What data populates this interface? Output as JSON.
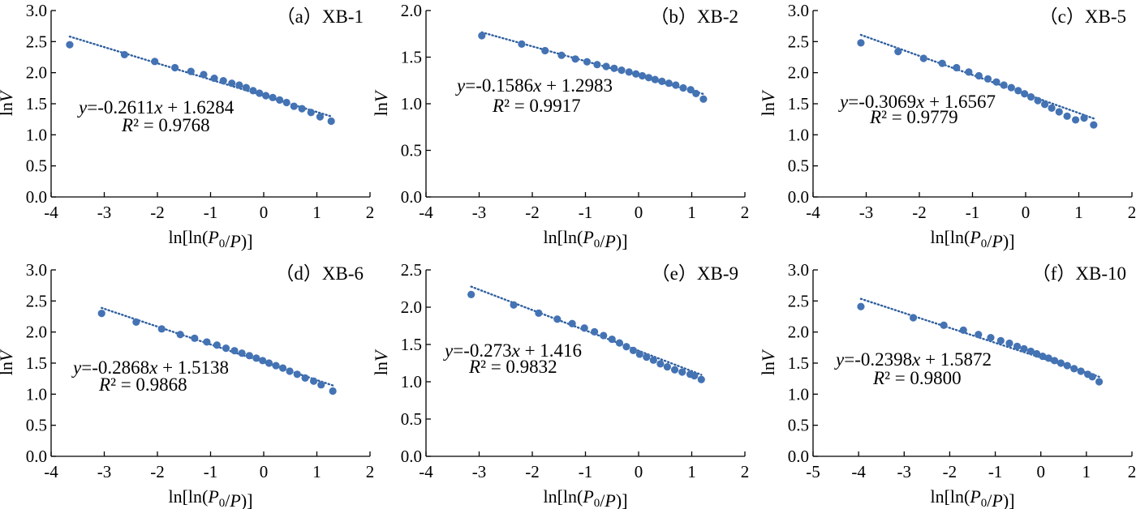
{
  "colors": {
    "marker": "#4473b4",
    "fit_line": "#2f5f9e",
    "axis": "#000000"
  },
  "chart_data": [
    {
      "type": "scatter",
      "title": "（a）XB-1",
      "xlabel": "ln[ln(P0/P)]",
      "ylabel": "lnV",
      "xlim": [
        -4,
        2
      ],
      "ylim": [
        0,
        3
      ],
      "xticks": [
        -4,
        -3,
        -2,
        -1,
        0,
        1,
        2
      ],
      "yticks": [
        0.0,
        0.5,
        1.0,
        1.5,
        2.0,
        2.5,
        3.0
      ],
      "x": [
        -3.65,
        -2.62,
        -2.05,
        -1.67,
        -1.37,
        -1.13,
        -0.93,
        -0.76,
        -0.6,
        -0.46,
        -0.33,
        -0.2,
        -0.08,
        0.04,
        0.17,
        0.3,
        0.43,
        0.57,
        0.72,
        0.89,
        1.06,
        1.27
      ],
      "y": [
        2.45,
        2.29,
        2.18,
        2.08,
        2.02,
        1.97,
        1.91,
        1.87,
        1.83,
        1.8,
        1.76,
        1.71,
        1.67,
        1.63,
        1.6,
        1.56,
        1.52,
        1.46,
        1.42,
        1.36,
        1.29,
        1.22
      ],
      "fit": {
        "slope": -0.2611,
        "intercept": 1.6284,
        "x_range": [
          -3.65,
          1.27
        ]
      },
      "equation": {
        "y_text": "y",
        "eq_text": "=-0.2611",
        "x_text": "x",
        "tail_text": " + 1.6284",
        "r2_sym": "R",
        "r2_text": "² = 0.9768"
      }
    },
    {
      "type": "scatter",
      "title": "（b）XB-2",
      "xlabel": "ln[ln(P0/P)]",
      "ylabel": "lnV",
      "xlim": [
        -4,
        2
      ],
      "ylim": [
        0,
        2
      ],
      "xticks": [
        -4,
        -3,
        -2,
        -1,
        0,
        1,
        2
      ],
      "yticks": [
        0.0,
        0.5,
        1.0,
        1.5,
        2.0
      ],
      "x": [
        -2.95,
        -2.2,
        -1.76,
        -1.45,
        -1.19,
        -0.97,
        -0.78,
        -0.61,
        -0.46,
        -0.32,
        -0.18,
        -0.05,
        0.07,
        0.19,
        0.31,
        0.44,
        0.57,
        0.7,
        0.84,
        0.98,
        1.08,
        1.22
      ],
      "y": [
        1.73,
        1.64,
        1.57,
        1.52,
        1.48,
        1.45,
        1.42,
        1.4,
        1.38,
        1.36,
        1.34,
        1.32,
        1.3,
        1.28,
        1.26,
        1.24,
        1.22,
        1.2,
        1.17,
        1.15,
        1.11,
        1.05
      ],
      "fit": {
        "slope": -0.1586,
        "intercept": 1.2983,
        "x_range": [
          -2.95,
          1.22
        ]
      },
      "equation": {
        "y_text": "y",
        "eq_text": "=-0.1586",
        "x_text": "x",
        "tail_text": " + 1.2983",
        "r2_sym": "R",
        "r2_text": "² = 0.9917"
      }
    },
    {
      "type": "scatter",
      "title": "（c）XB-5",
      "xlabel": "ln[ln(P0/P)]",
      "ylabel": "lnV",
      "xlim": [
        -4,
        2
      ],
      "ylim": [
        0,
        3
      ],
      "xticks": [
        -4,
        -3,
        -2,
        -1,
        0,
        1,
        2
      ],
      "yticks": [
        0.0,
        0.5,
        1.0,
        1.5,
        2.0,
        2.5,
        3.0
      ],
      "x": [
        -3.1,
        -2.4,
        -1.92,
        -1.57,
        -1.3,
        -1.07,
        -0.88,
        -0.71,
        -0.55,
        -0.41,
        -0.27,
        -0.14,
        -0.02,
        0.1,
        0.23,
        0.36,
        0.49,
        0.63,
        0.78,
        0.94,
        1.1,
        1.28
      ],
      "y": [
        2.48,
        2.34,
        2.23,
        2.15,
        2.08,
        2.01,
        1.95,
        1.9,
        1.85,
        1.8,
        1.76,
        1.71,
        1.66,
        1.61,
        1.55,
        1.49,
        1.43,
        1.37,
        1.3,
        1.24,
        1.27,
        1.16
      ],
      "fit": {
        "slope": -0.3069,
        "intercept": 1.6567,
        "x_range": [
          -3.1,
          1.28
        ]
      },
      "equation": {
        "y_text": "y",
        "eq_text": "=-0.3069",
        "x_text": "x",
        "tail_text": " + 1.6567",
        "r2_sym": "R",
        "r2_text": "² = 0.9779"
      }
    },
    {
      "type": "scatter",
      "title": "（d）XB-6",
      "xlabel": "ln[ln(P0/P)]",
      "ylabel": "lnV",
      "xlim": [
        -4,
        2
      ],
      "ylim": [
        0,
        3
      ],
      "xticks": [
        -4,
        -3,
        -2,
        -1,
        0,
        1,
        2
      ],
      "yticks": [
        0.0,
        0.5,
        1.0,
        1.5,
        2.0,
        2.5,
        3.0
      ],
      "x": [
        -3.05,
        -2.4,
        -1.92,
        -1.57,
        -1.3,
        -1.07,
        -0.88,
        -0.71,
        -0.55,
        -0.41,
        -0.27,
        -0.14,
        -0.02,
        0.1,
        0.23,
        0.36,
        0.49,
        0.63,
        0.78,
        0.94,
        1.08,
        1.3
      ],
      "y": [
        2.3,
        2.16,
        2.05,
        1.96,
        1.9,
        1.84,
        1.79,
        1.74,
        1.7,
        1.66,
        1.62,
        1.58,
        1.54,
        1.5,
        1.46,
        1.42,
        1.37,
        1.32,
        1.26,
        1.21,
        1.15,
        1.05
      ],
      "fit": {
        "slope": -0.2868,
        "intercept": 1.5138,
        "x_range": [
          -3.05,
          1.3
        ]
      },
      "equation": {
        "y_text": "y",
        "eq_text": "=-0.2868",
        "x_text": "x",
        "tail_text": " + 1.5138",
        "r2_sym": "R",
        "r2_text": "² = 0.9868"
      }
    },
    {
      "type": "scatter",
      "title": "（e）XB-9",
      "xlabel": "ln[ln(P0/P)]",
      "ylabel": "lnV",
      "xlim": [
        -4,
        2
      ],
      "ylim": [
        0,
        2.5
      ],
      "xticks": [
        -4,
        -3,
        -2,
        -1,
        0,
        1,
        2
      ],
      "yticks": [
        0.0,
        0.5,
        1.0,
        1.5,
        2.0,
        2.5
      ],
      "x": [
        -3.15,
        -2.35,
        -1.88,
        -1.53,
        -1.25,
        -1.02,
        -0.83,
        -0.66,
        -0.5,
        -0.36,
        -0.23,
        -0.1,
        0.02,
        0.15,
        0.28,
        0.41,
        0.54,
        0.68,
        0.82,
        0.97,
        1.05,
        1.18
      ],
      "y": [
        2.17,
        2.03,
        1.92,
        1.84,
        1.78,
        1.72,
        1.67,
        1.62,
        1.57,
        1.52,
        1.47,
        1.42,
        1.37,
        1.33,
        1.29,
        1.24,
        1.2,
        1.16,
        1.13,
        1.1,
        1.08,
        1.03
      ],
      "fit": {
        "slope": -0.273,
        "intercept": 1.416,
        "x_range": [
          -3.15,
          1.18
        ]
      },
      "equation": {
        "y_text": "y",
        "eq_text": "=-0.273",
        "x_text": "x",
        "tail_text": " + 1.416",
        "r2_sym": "R",
        "r2_text": "² = 0.9832"
      }
    },
    {
      "type": "scatter",
      "title": "（f）XB-10",
      "xlabel": "ln[ln(P0/P)]",
      "ylabel": "lnV",
      "xlim": [
        -5,
        2
      ],
      "ylim": [
        0,
        3
      ],
      "xticks": [
        -5,
        -4,
        -3,
        -2,
        -1,
        0,
        1,
        2
      ],
      "yticks": [
        0.0,
        0.5,
        1.0,
        1.5,
        2.0,
        2.5,
        3.0
      ],
      "x": [
        -3.95,
        -2.8,
        -2.13,
        -1.7,
        -1.37,
        -1.1,
        -0.88,
        -0.69,
        -0.52,
        -0.37,
        -0.22,
        -0.09,
        0.04,
        0.17,
        0.3,
        0.44,
        0.58,
        0.73,
        0.88,
        1.03,
        1.13,
        1.28
      ],
      "y": [
        2.41,
        2.23,
        2.11,
        2.03,
        1.96,
        1.91,
        1.86,
        1.82,
        1.77,
        1.73,
        1.69,
        1.65,
        1.61,
        1.58,
        1.54,
        1.5,
        1.46,
        1.41,
        1.37,
        1.32,
        1.28,
        1.2
      ],
      "fit": {
        "slope": -0.2398,
        "intercept": 1.5872,
        "x_range": [
          -3.95,
          1.28
        ]
      },
      "equation": {
        "y_text": "y",
        "eq_text": "=-0.2398",
        "x_text": "x",
        "tail_text": " + 1.5872",
        "r2_sym": "R",
        "r2_text": "² = 0.9800"
      }
    }
  ]
}
